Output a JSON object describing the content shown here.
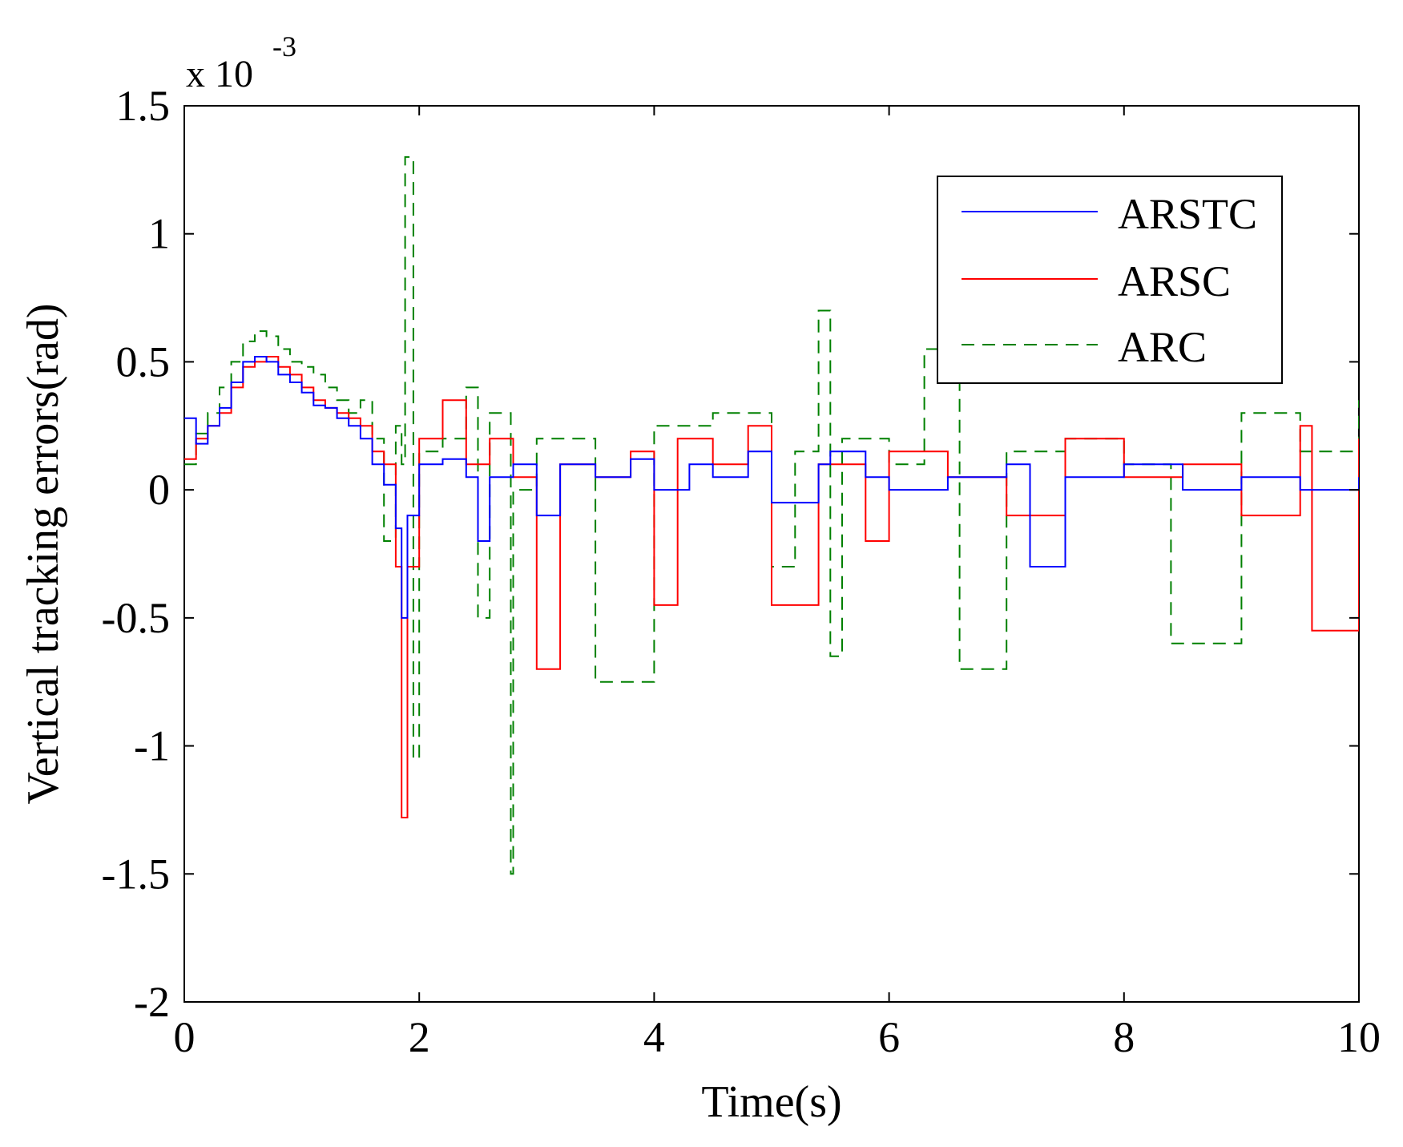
{
  "chart_data": {
    "type": "line",
    "title": "",
    "xlabel": "Time(s)",
    "ylabel": "Vertical tracking errors(rad)",
    "y_exponent_prefix": "x 10",
    "y_exponent_power": "-3",
    "xlim": [
      0,
      10
    ],
    "ylim": [
      -2,
      1.5
    ],
    "xticks": [
      0,
      2,
      4,
      6,
      8,
      10
    ],
    "xtick_labels": [
      "0",
      "2",
      "4",
      "6",
      "8",
      "10"
    ],
    "yticks": [
      -2,
      -1.5,
      -1,
      -0.5,
      0,
      0.5,
      1,
      1.5
    ],
    "ytick_labels": [
      "-2",
      "-1.5",
      "-1",
      "-0.5",
      "0",
      "0.5",
      "1",
      "1.5"
    ],
    "legend_position": "top-right",
    "series": [
      {
        "name": "ARSTC",
        "color": "#0000ff",
        "style": "solid",
        "x": [
          0,
          0.1,
          0.2,
          0.3,
          0.4,
          0.5,
          0.6,
          0.7,
          0.8,
          0.9,
          1.0,
          1.1,
          1.2,
          1.3,
          1.4,
          1.5,
          1.6,
          1.7,
          1.8,
          1.85,
          1.9,
          2.0,
          2.2,
          2.4,
          2.5,
          2.6,
          2.8,
          3.0,
          3.2,
          3.5,
          3.8,
          4.0,
          4.3,
          4.5,
          4.8,
          5.0,
          5.4,
          5.5,
          5.8,
          6.0,
          6.5,
          7.0,
          7.2,
          7.5,
          8.0,
          8.5,
          9.0,
          9.5,
          10.0
        ],
        "y": [
          0.28,
          0.18,
          0.25,
          0.32,
          0.42,
          0.5,
          0.52,
          0.5,
          0.45,
          0.42,
          0.38,
          0.33,
          0.32,
          0.28,
          0.25,
          0.2,
          0.1,
          0.02,
          -0.15,
          -0.5,
          -0.1,
          0.1,
          0.12,
          0.05,
          -0.2,
          0.05,
          0.1,
          -0.1,
          0.1,
          0.05,
          0.12,
          0.0,
          0.1,
          0.05,
          0.15,
          -0.05,
          0.1,
          0.15,
          0.05,
          0.0,
          0.05,
          0.1,
          -0.3,
          0.05,
          0.1,
          0.0,
          0.05,
          0.0,
          0.05
        ]
      },
      {
        "name": "ARSC",
        "color": "#ff0000",
        "style": "solid",
        "x": [
          0,
          0.1,
          0.2,
          0.3,
          0.4,
          0.5,
          0.6,
          0.7,
          0.8,
          0.9,
          1.0,
          1.1,
          1.2,
          1.3,
          1.4,
          1.5,
          1.6,
          1.7,
          1.8,
          1.85,
          1.9,
          2.0,
          2.2,
          2.4,
          2.6,
          2.8,
          3.0,
          3.2,
          3.5,
          3.8,
          4.0,
          4.2,
          4.5,
          4.8,
          5.0,
          5.4,
          5.8,
          6.0,
          6.5,
          7.0,
          7.5,
          8.0,
          8.5,
          9.0,
          9.5,
          9.6,
          10.0
        ],
        "y": [
          0.12,
          0.2,
          0.25,
          0.3,
          0.4,
          0.48,
          0.5,
          0.52,
          0.48,
          0.45,
          0.4,
          0.35,
          0.32,
          0.3,
          0.28,
          0.25,
          0.15,
          0.1,
          -0.3,
          -1.28,
          -0.3,
          0.2,
          0.35,
          0.1,
          0.2,
          0.05,
          -0.7,
          0.1,
          0.05,
          0.15,
          -0.45,
          0.2,
          0.1,
          0.25,
          -0.45,
          0.1,
          -0.2,
          0.15,
          0.05,
          -0.1,
          0.2,
          0.05,
          0.1,
          -0.1,
          0.25,
          -0.55,
          0.2
        ]
      },
      {
        "name": "ARC",
        "color": "#008000",
        "style": "dashed",
        "x": [
          0,
          0.1,
          0.2,
          0.3,
          0.4,
          0.5,
          0.6,
          0.7,
          0.8,
          0.9,
          1.0,
          1.1,
          1.2,
          1.3,
          1.4,
          1.5,
          1.6,
          1.7,
          1.8,
          1.85,
          1.88,
          1.95,
          2.0,
          2.2,
          2.4,
          2.5,
          2.6,
          2.78,
          2.8,
          3.0,
          3.5,
          4.0,
          4.5,
          5.0,
          5.2,
          5.4,
          5.5,
          5.6,
          6.0,
          6.3,
          6.6,
          7.0,
          7.5,
          8.0,
          8.4,
          9.0,
          9.5,
          10.0
        ],
        "y": [
          0.1,
          0.22,
          0.3,
          0.4,
          0.5,
          0.58,
          0.62,
          0.6,
          0.55,
          0.5,
          0.48,
          0.45,
          0.4,
          0.35,
          0.3,
          0.35,
          0.2,
          -0.2,
          0.25,
          0.1,
          1.3,
          -1.05,
          0.15,
          0.2,
          0.4,
          -0.5,
          0.3,
          -1.5,
          0.0,
          0.2,
          -0.75,
          0.25,
          0.3,
          -0.3,
          0.15,
          0.7,
          -0.65,
          0.2,
          0.1,
          0.55,
          -0.7,
          0.15,
          0.2,
          0.1,
          -0.6,
          0.3,
          0.15,
          0.35
        ]
      }
    ]
  }
}
